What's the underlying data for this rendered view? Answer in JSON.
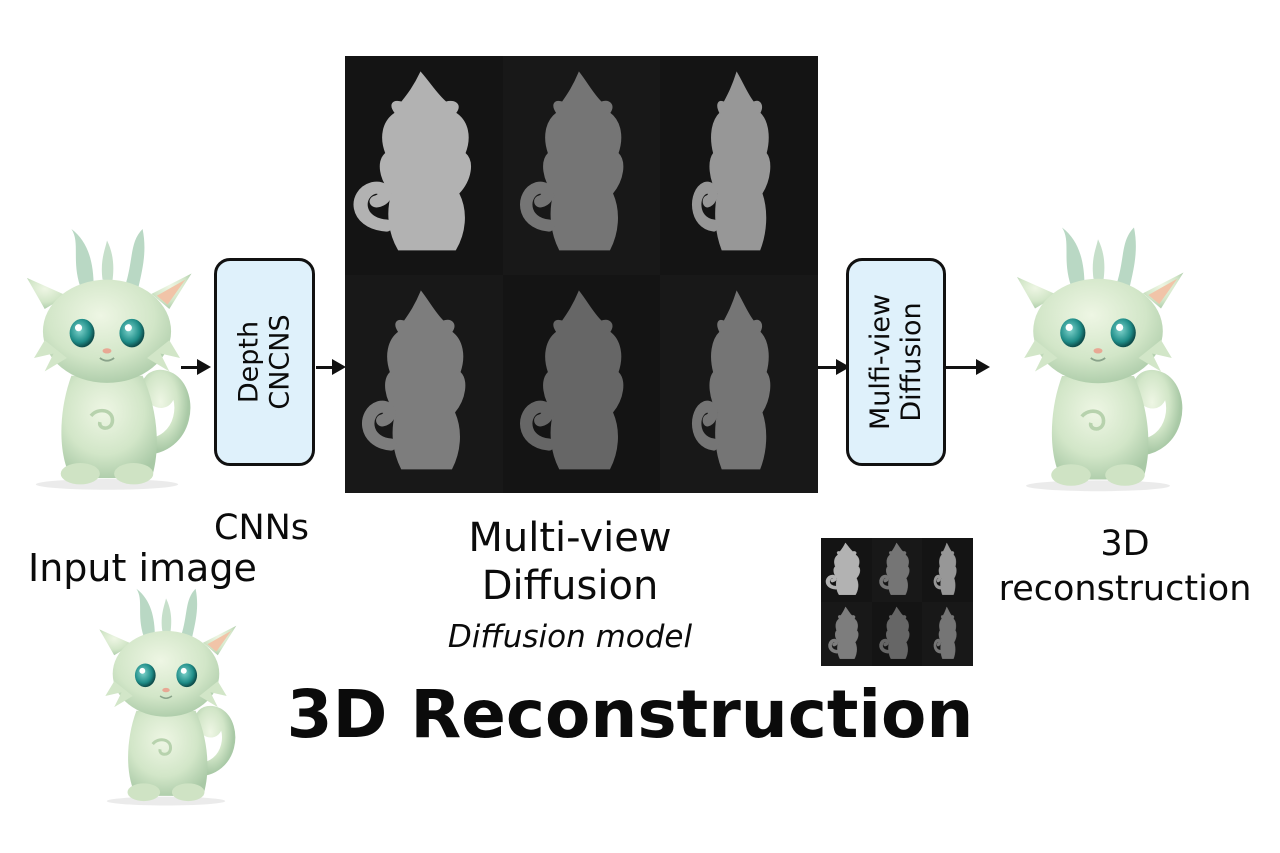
{
  "labels": {
    "depth_box_line1": "Depth",
    "depth_box_line2": "CNCNS",
    "cnns": "CNNs",
    "input_image": "Input image",
    "mv_title_line1": "Multi-view",
    "mv_title_line2": "Diffusion",
    "mv_subtitle": "Diffusion model",
    "diffusion_box_line1": "Mulfi-view",
    "diffusion_box_line2": "Diffusion",
    "recon_line1": "3D",
    "recon_line2": "reconstruction",
    "main_title": "3D Reconstruction"
  },
  "colors": {
    "box_fill": "#dff1fb",
    "box_border": "#111111",
    "panel_background": "#141414",
    "creature_body": "#d2e6c8",
    "creature_shadow": "#a9c9a6",
    "creature_ear_inner": "#f1c4a8",
    "creature_eye": "#1f8d88"
  },
  "icons": {
    "arrow": "right-arrow-icon",
    "figure": "dragon-cat-figure"
  },
  "depth_views": [
    {
      "row": 1,
      "col": 1,
      "brightness": 0.62,
      "pose": "three-quarter"
    },
    {
      "row": 1,
      "col": 2,
      "brightness": 0.3,
      "pose": "front"
    },
    {
      "row": 1,
      "col": 3,
      "brightness": 0.48,
      "pose": "side"
    },
    {
      "row": 2,
      "col": 1,
      "brightness": 0.34,
      "pose": "back"
    },
    {
      "row": 2,
      "col": 2,
      "brightness": 0.22,
      "pose": "front"
    },
    {
      "row": 2,
      "col": 3,
      "brightness": 0.3,
      "pose": "side"
    }
  ]
}
